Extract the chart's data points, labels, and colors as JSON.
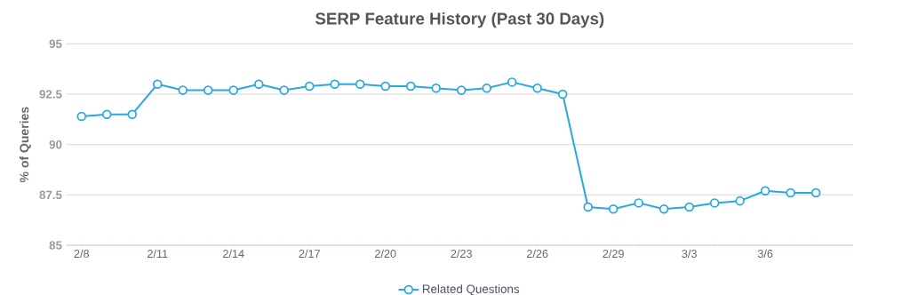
{
  "chart_data": {
    "type": "line",
    "title": "SERP Feature History (Past 30 Days)",
    "ylabel": "% of Queries",
    "categories": [
      "2/8",
      null,
      null,
      "2/11",
      null,
      null,
      "2/14",
      null,
      null,
      "2/17",
      null,
      null,
      "2/20",
      null,
      null,
      "2/23",
      null,
      null,
      "2/26",
      null,
      null,
      "2/29",
      null,
      null,
      "3/3",
      null,
      null,
      "3/6",
      null,
      null
    ],
    "series": [
      {
        "name": "Related Questions",
        "color": "#29a8df",
        "values": [
          91.4,
          91.5,
          91.5,
          93.0,
          92.7,
          92.7,
          92.7,
          93.0,
          92.7,
          92.9,
          93.0,
          93.0,
          92.9,
          92.9,
          92.8,
          92.7,
          92.8,
          93.1,
          92.8,
          92.5,
          86.9,
          86.8,
          87.1,
          86.8,
          86.9,
          87.1,
          87.2,
          87.7,
          87.6,
          87.6
        ]
      }
    ],
    "ylim": [
      85,
      95
    ],
    "yticks": [
      85,
      87.5,
      90,
      92.5,
      95
    ],
    "grid": "y",
    "legend": "bottom",
    "marker": "circle",
    "line_style": "solid"
  }
}
